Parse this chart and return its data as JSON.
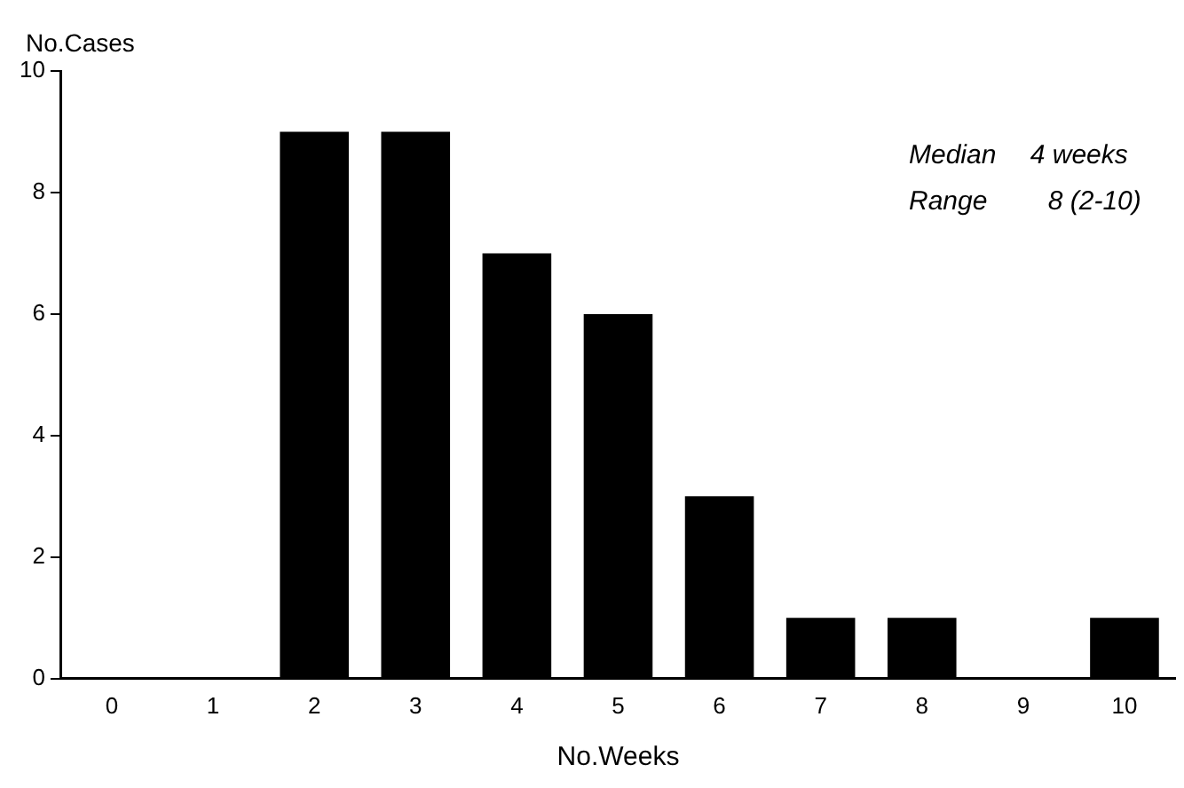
{
  "chart_data": {
    "type": "bar",
    "categories": [
      "0",
      "1",
      "2",
      "3",
      "4",
      "5",
      "6",
      "7",
      "8",
      "9",
      "10"
    ],
    "values": [
      0,
      0,
      9,
      9,
      7,
      6,
      3,
      1,
      1,
      0,
      1
    ],
    "color": "#000000",
    "ylim": [
      0,
      10
    ],
    "yticks": [
      0,
      2,
      4,
      6,
      8,
      10
    ],
    "grid": false,
    "legend": false,
    "xlabel": "No.Weeks",
    "ylabel": "No.Cases",
    "annotations": [
      "Median  4 weeks",
      "Range   8 (2-10)"
    ]
  }
}
